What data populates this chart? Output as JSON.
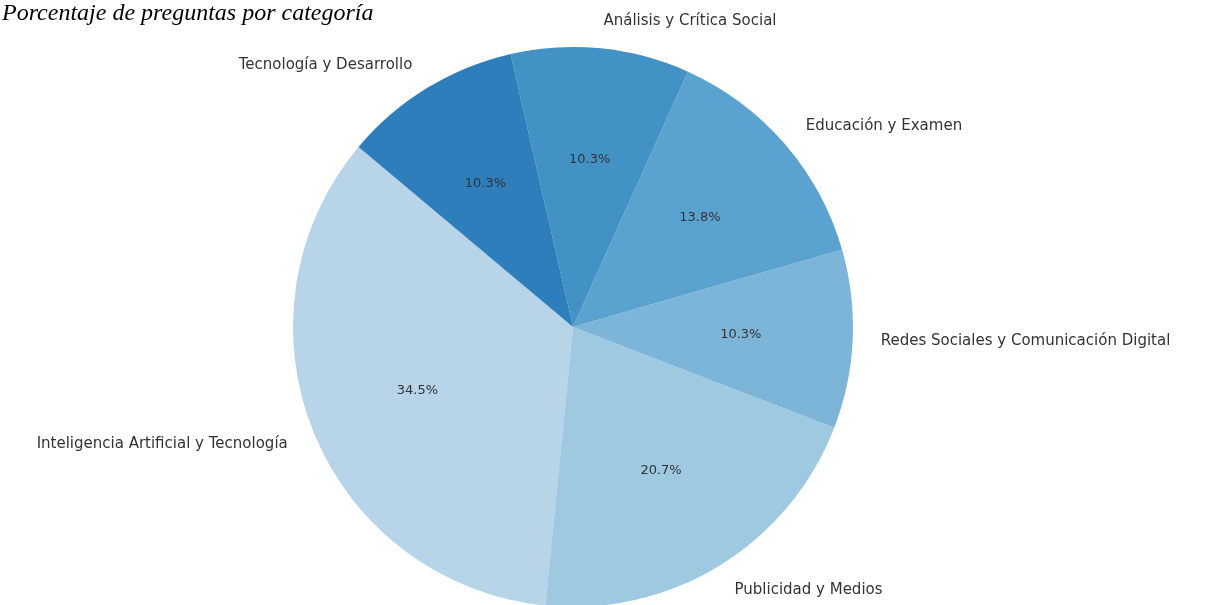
{
  "chart_data": {
    "type": "pie",
    "title": "Porcentaje de preguntas por categoría",
    "categories": [
      "Inteligencia Artificial y Tecnología",
      "Publicidad y Medios",
      "Redes Sociales y Comunicación Digital",
      "Educación y Examen",
      "Análisis y Crítica Social",
      "Tecnología y Desarrollo"
    ],
    "values": [
      34.5,
      20.7,
      10.3,
      13.8,
      10.3,
      10.3
    ],
    "value_labels": [
      "34.5%",
      "20.7%",
      "10.3%",
      "13.8%",
      "10.3%",
      "10.3%"
    ],
    "colors": [
      "#b8d4e9",
      "#9ec9e1",
      "#7db5d9",
      "#5aa3d1",
      "#4292c6",
      "#2f7ebc"
    ]
  }
}
